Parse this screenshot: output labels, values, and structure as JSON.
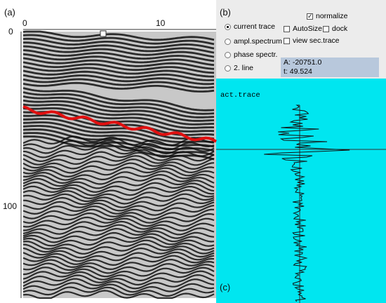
{
  "panel_labels": {
    "a": "(a)",
    "b": "(b)",
    "c": "(c)"
  },
  "radargram": {
    "x_ticks": [
      "0",
      "10"
    ],
    "y_ticks": [
      "0",
      "100"
    ]
  },
  "controls": {
    "radios": [
      "current trace",
      "ampl.spectrum",
      "phase spectr.",
      "2. line"
    ],
    "checkboxes": {
      "normalize": "normalize",
      "autosize": "AutoSize",
      "dock": "dock",
      "view_sec_trace": "view sec.trace"
    }
  },
  "info": {
    "amplitude": "A: -20751.0",
    "time": "t: 49.524"
  },
  "trace": {
    "title": "act.trace"
  }
}
